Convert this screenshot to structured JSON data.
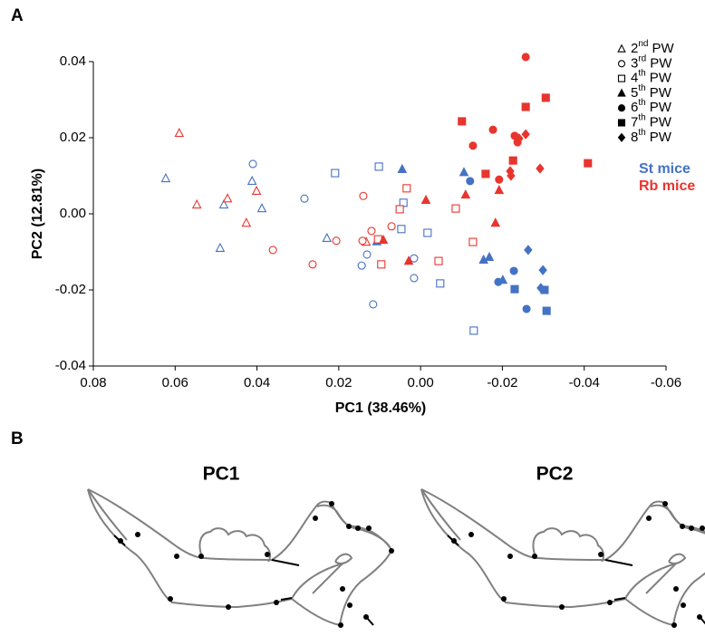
{
  "panel_a_label": "A",
  "panel_b_label": "B",
  "chart_data": {
    "type": "scatter",
    "xlabel": "PC1 (38.46%)",
    "ylabel": "PC2 (12.81%)",
    "xlim": [
      0.08,
      -0.06
    ],
    "xticks": [
      0.08,
      0.06,
      0.04,
      0.02,
      {
        "value": 0,
        "label": "0.00"
      },
      -0.02,
      -0.04,
      -0.06
    ],
    "ylim": [
      -0.04,
      0.04
    ],
    "yticks": [
      -0.04,
      -0.02,
      {
        "value": 0,
        "label": "0.00"
      },
      0.02,
      0.04
    ],
    "ages": [
      {
        "ordinal": "2",
        "suffix": "nd",
        "unit": "PW",
        "marker": "triangle",
        "filled": false
      },
      {
        "ordinal": "3",
        "suffix": "rd",
        "unit": "PW",
        "marker": "circle",
        "filled": false
      },
      {
        "ordinal": "4",
        "suffix": "th",
        "unit": "PW",
        "marker": "square",
        "filled": false
      },
      {
        "ordinal": "5",
        "suffix": "th",
        "unit": "PW",
        "marker": "triangle",
        "filled": true
      },
      {
        "ordinal": "6",
        "suffix": "th",
        "unit": "PW",
        "marker": "circle",
        "filled": true
      },
      {
        "ordinal": "7",
        "suffix": "th",
        "unit": "PW",
        "marker": "square",
        "filled": true
      },
      {
        "ordinal": "8",
        "suffix": "th",
        "unit": "PW",
        "marker": "diamond",
        "filled": true
      }
    ],
    "groups": [
      {
        "name": "St mice",
        "color": "#4472c4",
        "ages": [
          {
            "x": [
              0.0623,
              0.0412,
              0.0481,
              0.0388,
              0.049,
              0.0229
            ],
            "y": [
              0.0093,
              0.0086,
              0.0024,
              0.0014,
              -0.009,
              -0.0064
            ]
          },
          {
            "x": [
              0.041,
              0.0284,
              0.0131,
              0.0144,
              0.0016,
              0.0016,
              0.0116
            ],
            "y": [
              0.0131,
              0.004,
              -0.0107,
              -0.0136,
              -0.0117,
              -0.0169,
              -0.0238
            ]
          },
          {
            "x": [
              0.0209,
              0.0102,
              0.0042,
              0.0047,
              -0.0017,
              -0.0048,
              -0.013
            ],
            "y": [
              0.0107,
              0.0124,
              0.0029,
              -0.004,
              -0.005,
              -0.0183,
              -0.0307
            ]
          },
          {
            "x": [
              0.0045,
              0.0107,
              -0.0106,
              -0.0154,
              -0.0168,
              -0.0201
            ],
            "y": [
              0.0117,
              -0.0073,
              0.0109,
              -0.0121,
              -0.0114,
              -0.0174
            ]
          },
          {
            "x": [
              -0.0121,
              -0.0228,
              -0.019,
              -0.0259
            ],
            "y": [
              0.0086,
              -0.015,
              -0.0179,
              -0.025
            ]
          },
          {
            "x": [
              -0.023,
              -0.0303,
              -0.0308
            ],
            "y": [
              -0.0198,
              -0.02,
              -0.0255
            ]
          },
          {
            "x": [
              -0.0263,
              -0.0299,
              -0.0294
            ],
            "y": [
              -0.0095,
              -0.0148,
              -0.0195
            ]
          }
        ]
      },
      {
        "name": "Rb mice",
        "color": "#e8352e",
        "ages": [
          {
            "x": [
              0.059,
              0.0547,
              0.0472,
              0.0401,
              0.0426,
              0.0133
            ],
            "y": [
              0.0212,
              0.0024,
              0.004,
              0.006,
              -0.0024,
              -0.0074
            ]
          },
          {
            "x": [
              0.0361,
              0.0264,
              0.0206,
              0.014,
              0.012,
              0.0142,
              0.0071
            ],
            "y": [
              -0.0095,
              -0.0133,
              -0.0071,
              0.0047,
              -0.0045,
              -0.0071,
              -0.0033
            ]
          },
          {
            "x": [
              0.0104,
              0.0034,
              0.0051,
              0.0096,
              -0.0044,
              -0.0086,
              -0.0128
            ],
            "y": [
              -0.0067,
              0.0067,
              0.0012,
              -0.0133,
              -0.0124,
              0.0014,
              -0.0074
            ]
          },
          {
            "x": [
              0.0091,
              0.0029,
              -0.0013,
              -0.011,
              -0.0192,
              -0.0183
            ],
            "y": [
              -0.0069,
              -0.0124,
              0.0036,
              0.005,
              0.0062,
              -0.0024
            ]
          },
          {
            "x": [
              -0.0128,
              -0.0177,
              -0.0192,
              -0.023,
              -0.0257,
              -0.0237
            ],
            "y": [
              0.0179,
              0.0221,
              0.009,
              0.0205,
              0.0412,
              0.0188
            ]
          },
          {
            "x": [
              -0.0101,
              -0.0159,
              -0.0226,
              -0.0257,
              -0.0306,
              -0.0409
            ],
            "y": [
              0.0243,
              0.0105,
              0.014,
              0.0281,
              0.0305,
              0.0133
            ]
          },
          {
            "x": [
              -0.0241,
              -0.0257,
              -0.0219,
              -0.0221,
              -0.0292
            ],
            "y": [
              0.0198,
              0.0209,
              0.0112,
              0.01,
              0.0119
            ]
          }
        ]
      }
    ]
  },
  "panel_b": {
    "titles": [
      "PC1",
      "PC2"
    ]
  }
}
